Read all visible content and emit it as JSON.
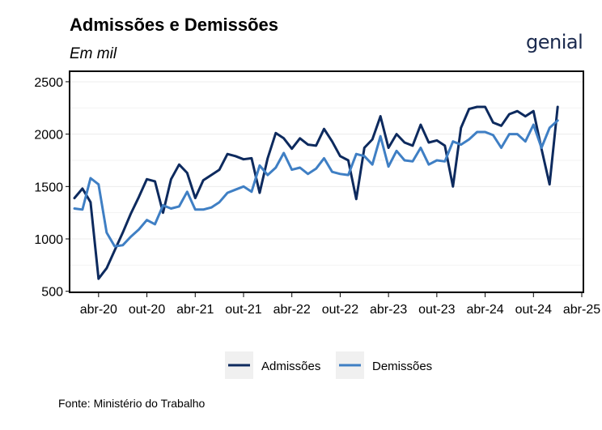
{
  "title": "Admissões e Demissões",
  "subtitle": "Em mil",
  "logo_text": "genial",
  "source": "Fonte: Ministério do Trabalho",
  "colors": {
    "admissoes": "#0d2a5e",
    "demissoes": "#3f7fc4"
  },
  "chart_data": {
    "type": "line",
    "title": "Admissões e Demissões",
    "subtitle": "Em mil",
    "xlabel": "",
    "ylabel": "",
    "ylim": [
      490,
      2600
    ],
    "xlim": [
      "2020-01",
      "2025-04"
    ],
    "y_ticks": [
      500,
      1000,
      1500,
      2000,
      2500
    ],
    "x_ticks": [
      "2020-04",
      "2020-10",
      "2021-04",
      "2021-10",
      "2022-04",
      "2022-10",
      "2023-04",
      "2023-10",
      "2024-04",
      "2024-10",
      "2025-04"
    ],
    "x_tick_labels": [
      "abr-20",
      "out-20",
      "abr-21",
      "out-21",
      "abr-22",
      "out-22",
      "abr-23",
      "out-23",
      "abr-24",
      "out-24",
      "abr-25"
    ],
    "grid": "horizontal",
    "legend_position": "bottom",
    "x": [
      "2020-01",
      "2020-02",
      "2020-03",
      "2020-04",
      "2020-05",
      "2020-06",
      "2020-07",
      "2020-08",
      "2020-09",
      "2020-10",
      "2020-11",
      "2020-12",
      "2021-01",
      "2021-02",
      "2021-03",
      "2021-04",
      "2021-05",
      "2021-06",
      "2021-07",
      "2021-08",
      "2021-09",
      "2021-10",
      "2021-11",
      "2021-12",
      "2022-01",
      "2022-02",
      "2022-03",
      "2022-04",
      "2022-05",
      "2022-06",
      "2022-07",
      "2022-08",
      "2022-09",
      "2022-10",
      "2022-11",
      "2022-12",
      "2023-01",
      "2023-02",
      "2023-03",
      "2023-04",
      "2023-05",
      "2023-06",
      "2023-07",
      "2023-08",
      "2023-09",
      "2023-10",
      "2023-11",
      "2023-12",
      "2024-01",
      "2024-02",
      "2024-03",
      "2024-04",
      "2024-05",
      "2024-06",
      "2024-07",
      "2024-08",
      "2024-09",
      "2024-10",
      "2024-11",
      "2024-12",
      "2025-01"
    ],
    "series": [
      {
        "name": "Admissões",
        "values": [
          1390,
          1480,
          1350,
          620,
          720,
          890,
          1060,
          1240,
          1400,
          1570,
          1550,
          1250,
          1570,
          1710,
          1630,
          1390,
          1560,
          1610,
          1660,
          1810,
          1790,
          1760,
          1770,
          1440,
          1770,
          2010,
          1960,
          1860,
          1960,
          1900,
          1890,
          2050,
          1930,
          1790,
          1750,
          1380,
          1870,
          1950,
          2170,
          1870,
          2000,
          1920,
          1890,
          2090,
          1920,
          1940,
          1890,
          1500,
          2060,
          2240,
          2260,
          2260,
          2110,
          2080,
          2190,
          2220,
          2170,
          2220,
          1860,
          1520,
          2260
        ]
      },
      {
        "name": "Demissões",
        "values": [
          1290,
          1280,
          1580,
          1520,
          1060,
          930,
          940,
          1020,
          1090,
          1180,
          1140,
          1320,
          1290,
          1310,
          1450,
          1280,
          1280,
          1300,
          1350,
          1440,
          1470,
          1500,
          1450,
          1700,
          1610,
          1680,
          1820,
          1660,
          1680,
          1620,
          1670,
          1770,
          1640,
          1620,
          1610,
          1810,
          1790,
          1710,
          1980,
          1690,
          1840,
          1750,
          1740,
          1870,
          1710,
          1750,
          1740,
          1930,
          1900,
          1950,
          2020,
          2020,
          1990,
          1870,
          2000,
          2000,
          1930,
          2090,
          1870,
          2060,
          2130
        ]
      }
    ]
  }
}
